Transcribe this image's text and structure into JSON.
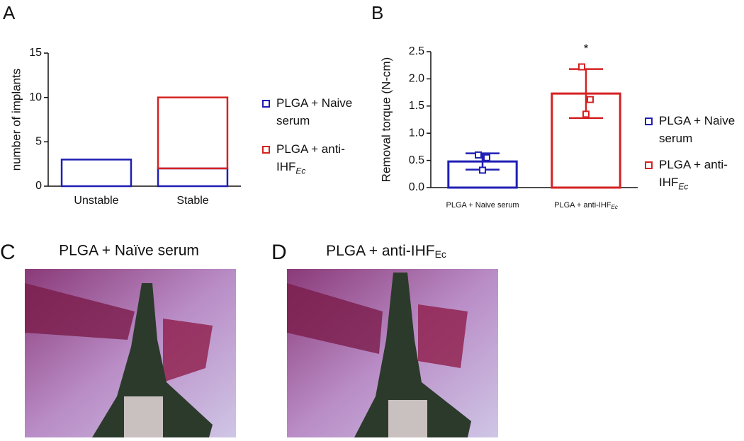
{
  "panels": {
    "a": "A",
    "b": "B",
    "c": "C",
    "d": "D"
  },
  "images": [
    {
      "caption": "PLGA + Naïve serum"
    },
    {
      "caption": "PLGA + anti-IHF",
      "subscript": "Ec"
    }
  ],
  "chart_data": [
    {
      "type": "bar",
      "stacked": true,
      "ylabel": "number of implants",
      "categories": [
        "Unstable",
        "Stable"
      ],
      "series": [
        {
          "name": "PLGA + Naive serum",
          "color": "#1f1fb4",
          "values": [
            3,
            2
          ]
        },
        {
          "name": "PLGA + anti-IHF",
          "subscript": "Ec",
          "color": "#d42222",
          "values": [
            0,
            8
          ]
        }
      ],
      "ylim": [
        0,
        15
      ],
      "yticks": [
        0,
        5,
        10,
        15
      ]
    },
    {
      "type": "errorbar",
      "ylabel": "Removal torque  (N-cm)",
      "categories": [
        {
          "label": "PLGA + Naive serum"
        },
        {
          "label": "PLGA + anti-IHF",
          "subscript": "Ec"
        }
      ],
      "series": [
        {
          "name": "PLGA + Naive serum",
          "color": "#1f1fb4",
          "value": 0.48,
          "error": 0.15,
          "points": [
            0.6,
            0.55,
            0.32
          ]
        },
        {
          "name": "PLGA + anti-IHF",
          "subscript": "Ec",
          "color": "#d42222",
          "value": 1.73,
          "error": 0.45,
          "points": [
            2.22,
            1.62,
            1.35
          ]
        }
      ],
      "annotation": "*",
      "ylim": [
        0,
        2.5
      ],
      "yticks": [
        {
          "value": 0,
          "label": "0.0"
        },
        0.5,
        {
          "value": 1,
          "label": "1.0"
        },
        1.5,
        {
          "value": 2,
          "label": "2.0"
        },
        2.5
      ]
    }
  ]
}
